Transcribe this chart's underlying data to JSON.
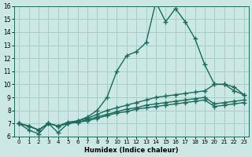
{
  "xlabel": "Humidex (Indice chaleur)",
  "ylabel": "",
  "xlim": [
    -0.5,
    23.5
  ],
  "ylim": [
    6,
    16
  ],
  "yticks": [
    6,
    7,
    8,
    9,
    10,
    11,
    12,
    13,
    14,
    15,
    16
  ],
  "xticks": [
    0,
    1,
    2,
    3,
    4,
    5,
    6,
    7,
    8,
    9,
    10,
    11,
    12,
    13,
    14,
    15,
    16,
    17,
    18,
    19,
    20,
    21,
    22,
    23
  ],
  "bg_color": "#cce8e4",
  "grid_color": "#a8ceca",
  "line_color": "#1a6b5a",
  "line_width": 1.0,
  "marker": "+",
  "marker_size": 4.0,
  "series": [
    {
      "x": [
        0,
        1,
        2,
        3,
        4,
        5,
        6,
        7,
        8,
        9,
        10,
        11,
        12,
        13,
        14,
        15,
        16,
        17,
        18,
        19,
        20,
        21,
        22,
        23
      ],
      "y": [
        7.0,
        6.5,
        6.2,
        7.0,
        6.3,
        7.0,
        7.2,
        7.5,
        8.0,
        9.0,
        11.0,
        12.2,
        12.5,
        13.2,
        16.3,
        14.8,
        15.8,
        14.8,
        13.5,
        11.5,
        10.0,
        10.0,
        9.5,
        9.2
      ]
    },
    {
      "x": [
        0,
        1,
        2,
        3,
        4,
        5,
        6,
        7,
        8,
        9,
        10,
        11,
        12,
        13,
        14,
        15,
        16,
        17,
        18,
        19,
        20,
        21,
        22,
        23
      ],
      "y": [
        7.0,
        6.8,
        6.5,
        7.0,
        6.8,
        7.1,
        7.2,
        7.4,
        7.7,
        8.0,
        8.2,
        8.4,
        8.6,
        8.8,
        9.0,
        9.1,
        9.2,
        9.3,
        9.4,
        9.5,
        10.0,
        10.0,
        9.8,
        9.2
      ]
    },
    {
      "x": [
        0,
        1,
        2,
        3,
        4,
        5,
        6,
        7,
        8,
        9,
        10,
        11,
        12,
        13,
        14,
        15,
        16,
        17,
        18,
        19,
        20,
        21,
        22,
        23
      ],
      "y": [
        7.0,
        6.8,
        6.5,
        7.0,
        6.8,
        7.0,
        7.1,
        7.3,
        7.5,
        7.7,
        7.9,
        8.1,
        8.2,
        8.4,
        8.5,
        8.6,
        8.7,
        8.8,
        8.9,
        9.0,
        8.5,
        8.6,
        8.7,
        8.8
      ]
    },
    {
      "x": [
        0,
        1,
        2,
        3,
        4,
        5,
        6,
        7,
        8,
        9,
        10,
        11,
        12,
        13,
        14,
        15,
        16,
        17,
        18,
        19,
        20,
        21,
        22,
        23
      ],
      "y": [
        7.0,
        6.8,
        6.5,
        7.0,
        6.8,
        7.0,
        7.1,
        7.2,
        7.4,
        7.6,
        7.8,
        7.9,
        8.1,
        8.2,
        8.3,
        8.4,
        8.5,
        8.6,
        8.7,
        8.8,
        8.3,
        8.4,
        8.5,
        8.6
      ]
    }
  ]
}
